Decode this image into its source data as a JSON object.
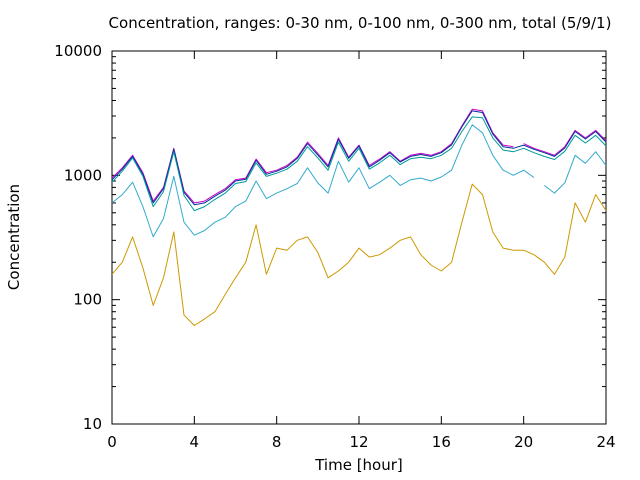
{
  "chart_data": {
    "type": "line",
    "title": "Concentration, ranges: 0-30 nm, 0-100 nm, 0-300 nm, total (5/9/1)",
    "xlabel": "Time [hour]",
    "ylabel": "Concentration",
    "xlim": [
      0,
      24
    ],
    "ylim": [
      10,
      10000
    ],
    "yscale": "log",
    "grid": false,
    "xticks": [
      0,
      4,
      8,
      12,
      16,
      20,
      24
    ],
    "yticks": [
      10,
      100,
      1000,
      10000
    ],
    "x": [
      0,
      0.5,
      1,
      1.5,
      2,
      2.5,
      3,
      3.5,
      4,
      4.5,
      5,
      5.5,
      6,
      6.5,
      7,
      7.5,
      8,
      8.5,
      9,
      9.5,
      10,
      10.5,
      11,
      11.5,
      12,
      12.5,
      13,
      13.5,
      14,
      14.5,
      15,
      15.5,
      16,
      16.5,
      17,
      17.5,
      18,
      18.5,
      19,
      19.5,
      20,
      20.5,
      21,
      21.5,
      22,
      22.5,
      23,
      23.5,
      24
    ],
    "series": [
      {
        "color": "#cc00cc",
        "values": [
          950,
          1150,
          1450,
          1050,
          620,
          800,
          1650,
          750,
          600,
          620,
          700,
          780,
          920,
          950,
          1350,
          1050,
          1100,
          1200,
          1400,
          1850,
          1500,
          1200,
          2000,
          1400,
          1750,
          1200,
          1350,
          1550,
          1300,
          1450,
          1500,
          1450,
          1550,
          1800,
          2500,
          3400,
          3300,
          2200,
          1750,
          1700,
          1800,
          1650,
          1550,
          1450,
          1700,
          2300,
          2000,
          2300,
          1900
        ],
        "gaps_after": [
          39
        ]
      },
      {
        "color": "#003399",
        "values": [
          920,
          1120,
          1420,
          1020,
          600,
          780,
          1620,
          730,
          580,
          600,
          680,
          760,
          900,
          930,
          1320,
          1020,
          1080,
          1170,
          1370,
          1800,
          1460,
          1170,
          1950,
          1370,
          1720,
          1170,
          1320,
          1520,
          1280,
          1420,
          1470,
          1420,
          1520,
          1760,
          2450,
          3300,
          3200,
          2150,
          1700,
          1650,
          1750,
          1620,
          1520,
          1420,
          1660,
          2250,
          1960,
          2250,
          1850
        ]
      },
      {
        "color": "#009999",
        "values": [
          880,
          1080,
          1380,
          980,
          560,
          740,
          1550,
          690,
          520,
          560,
          640,
          720,
          860,
          890,
          1260,
          980,
          1040,
          1120,
          1300,
          1700,
          1380,
          1100,
          1850,
          1300,
          1650,
          1120,
          1260,
          1450,
          1220,
          1360,
          1400,
          1360,
          1450,
          1650,
          2250,
          2950,
          2900,
          2000,
          1600,
          1550,
          1650,
          1520,
          1420,
          1340,
          1560,
          2100,
          1820,
          2100,
          1720
        ]
      },
      {
        "color": "#33aacc",
        "values": [
          600,
          700,
          880,
          560,
          320,
          450,
          980,
          420,
          330,
          360,
          420,
          460,
          560,
          620,
          900,
          650,
          720,
          780,
          860,
          1150,
          870,
          720,
          1300,
          880,
          1150,
          780,
          880,
          1000,
          830,
          920,
          950,
          900,
          970,
          1100,
          1750,
          2550,
          2200,
          1450,
          1100,
          1000,
          1100,
          960,
          830,
          720,
          870,
          1450,
          1250,
          1550,
          1200
        ],
        "gaps_after": [
          41
        ]
      },
      {
        "color": "#cc9900",
        "values": [
          160,
          200,
          320,
          180,
          90,
          150,
          350,
          75,
          62,
          70,
          80,
          110,
          150,
          200,
          400,
          160,
          260,
          250,
          300,
          320,
          240,
          150,
          170,
          200,
          260,
          220,
          230,
          260,
          300,
          320,
          230,
          190,
          170,
          200,
          420,
          850,
          700,
          350,
          260,
          250,
          250,
          230,
          200,
          160,
          220,
          600,
          420,
          700,
          520
        ]
      }
    ]
  }
}
